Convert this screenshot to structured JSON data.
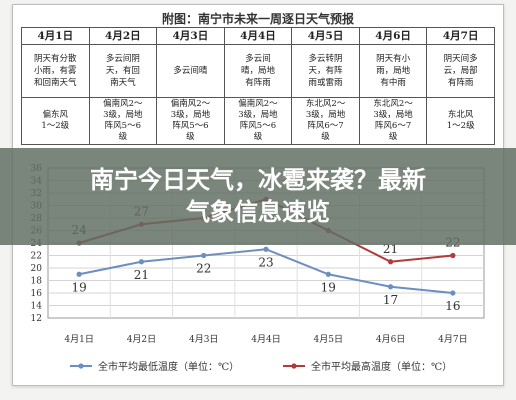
{
  "figure_title": "附图：南宁市未来一周逐日天气预报",
  "forecast_table": {
    "dates": [
      "4月1日",
      "4月2日",
      "4月3日",
      "4月4日",
      "4月5日",
      "4月6日",
      "4月7日"
    ],
    "weather": [
      [
        "阴天有分散",
        "小雨，有雾",
        "和回南天气"
      ],
      [
        "多云间阴",
        "天，有回",
        "南天气"
      ],
      [
        "多云间晴"
      ],
      [
        "多云间",
        "晴，局地",
        "有阵雨"
      ],
      [
        "多云转阴",
        "天，有阵",
        "雨或雷雨"
      ],
      [
        "阴天有小",
        "雨，局地",
        "有中雨"
      ],
      [
        "阴天间多",
        "云，局部",
        "有阵雨"
      ]
    ],
    "wind": [
      [
        "偏东风",
        "1～2级"
      ],
      [
        "偏南风2～",
        "3级，局地",
        "阵风5～6",
        "级"
      ],
      [
        "偏南风2～",
        "3级，局地",
        "阵风5～6",
        "级"
      ],
      [
        "偏南风2～",
        "3级，局地",
        "阵风5～6",
        "级"
      ],
      [
        "东北风2～",
        "3级，局地",
        "阵风6～7",
        "级"
      ],
      [
        "东北风2～",
        "3级，局地",
        "阵风6～7",
        "级"
      ],
      [
        "东北风",
        "1～2级"
      ]
    ]
  },
  "chart_data": {
    "type": "line",
    "categories": [
      "4月1日",
      "4月2日",
      "4月3日",
      "4月4日",
      "4月5日",
      "4月6日",
      "4月7日"
    ],
    "series": [
      {
        "name": "全市平均最低温度（单位：℃）",
        "values": [
          19,
          21,
          22,
          23,
          19,
          17,
          16
        ],
        "color": "#6b8fc0"
      },
      {
        "name": "全市平均最高温度（单位：℃）",
        "values": [
          24,
          27,
          28,
          31,
          26,
          21,
          22
        ],
        "color": "#b23a3a"
      }
    ],
    "data_labels_shown": [
      {
        "series": 0,
        "points": [
          19,
          21,
          22,
          23,
          19,
          17,
          16
        ]
      },
      {
        "series": 1,
        "points": [
          24,
          27,
          null,
          null,
          null,
          21,
          22
        ]
      }
    ],
    "yticks": [
      12,
      14,
      16,
      18,
      20,
      22,
      24,
      26,
      28,
      30,
      32,
      34,
      36
    ],
    "ylim": [
      12,
      36
    ],
    "grid": true,
    "legend_position": "bottom"
  },
  "banner": {
    "line1": "南宁今日天气，冰雹来袭？最新",
    "line2": "气象信息速览"
  }
}
